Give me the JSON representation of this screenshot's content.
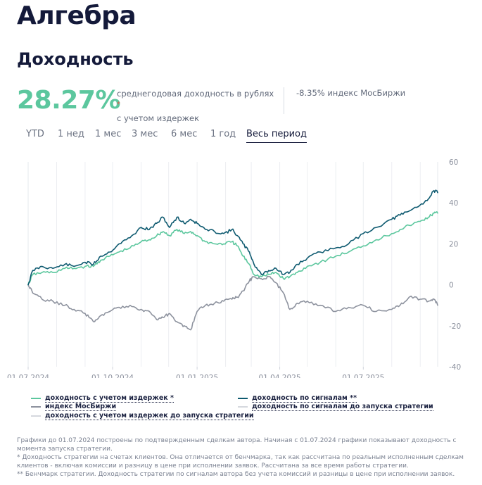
{
  "header": {
    "title": "Алгебра",
    "subtitle": "Доходность"
  },
  "summary": {
    "big_return": "28.27%",
    "desc_line1": "среднегодовая доходность в рублях",
    "desc_star": "*",
    "desc_line2": "с учетом издержек",
    "benchmark": "-8.35% индекс МосБиржи"
  },
  "tabs": [
    {
      "label": "YTD",
      "active": false
    },
    {
      "label": "1 нед",
      "active": false
    },
    {
      "label": "1 мес",
      "active": false
    },
    {
      "label": "3 мес",
      "active": false
    },
    {
      "label": "6 мес",
      "active": false
    },
    {
      "label": "1 год",
      "active": false
    },
    {
      "label": "Весь период",
      "active": true
    }
  ],
  "legend": {
    "net": "доходность с учетом издержек *",
    "signals": "доходность по сигналам **",
    "index": "индекс МосБиржи",
    "signals_pre": "доходность по сигналам до запуска стратегии",
    "net_pre": "доходность с учетом издержек до запуска стратегии"
  },
  "notes": {
    "n1": "Графики до 01.07.2024 построены по подтвержденным сделкам автора. Начиная с 01.07.2024 графики показывают доходность с момента запуска стратегии.",
    "n2": "* Доходность стратегии на счетах клиентов. Она отличается от бенчмарка, так как рассчитана по реальным исполненным сделкам клиентов - включая комиссии и разницу в цене при исполнении заявок. Рассчитана за все время работы стратегии.",
    "n3": "** Бенчмарк стратегии. Доходность стратегии по сигналам автора без учета комиссий и разницы в цене при исполнении заявок."
  },
  "colors": {
    "net": "#5cc79e",
    "signals": "#0e5a70",
    "index": "#8d929e",
    "pre": "#d5d8de"
  },
  "chart_data": {
    "type": "line",
    "x_range": [
      "2024-07-01",
      "2025-09-20"
    ],
    "x_ticks": [
      "01.07.2024",
      "01.10.2024",
      "01.01.2025",
      "01.04.2025",
      "01.07.2025"
    ],
    "y_range": [
      -40,
      60
    ],
    "y_ticks": [
      "60",
      "40",
      "20",
      "0",
      "-20",
      "-40"
    ],
    "grid": "vertical",
    "legend_placement": "bottom",
    "series": [
      {
        "name": "доходность по сигналам **",
        "color": "#0e5a70",
        "points": [
          [
            "2024-07-01",
            0
          ],
          [
            "2024-07-06",
            7
          ],
          [
            "2024-07-16",
            9
          ],
          [
            "2024-07-28",
            8
          ],
          [
            "2024-08-10",
            10
          ],
          [
            "2024-08-20",
            9
          ],
          [
            "2024-09-01",
            11
          ],
          [
            "2024-09-10",
            10
          ],
          [
            "2024-09-18",
            14
          ],
          [
            "2024-09-28",
            16
          ],
          [
            "2024-10-08",
            20
          ],
          [
            "2024-10-20",
            23
          ],
          [
            "2024-11-01",
            28
          ],
          [
            "2024-11-10",
            27
          ],
          [
            "2024-11-18",
            30
          ],
          [
            "2024-11-25",
            33
          ],
          [
            "2024-12-02",
            28
          ],
          [
            "2024-12-10",
            33
          ],
          [
            "2024-12-18",
            30
          ],
          [
            "2024-12-25",
            32
          ],
          [
            "2025-01-01",
            30
          ],
          [
            "2025-01-10",
            27
          ],
          [
            "2025-01-20",
            26
          ],
          [
            "2025-01-30",
            25
          ],
          [
            "2025-02-08",
            27
          ],
          [
            "2025-02-14",
            24
          ],
          [
            "2025-02-20",
            20
          ],
          [
            "2025-02-27",
            16
          ],
          [
            "2025-03-04",
            10
          ],
          [
            "2025-03-12",
            5
          ],
          [
            "2025-03-20",
            7
          ],
          [
            "2025-03-28",
            8
          ],
          [
            "2025-04-05",
            5
          ],
          [
            "2025-04-12",
            6
          ],
          [
            "2025-04-20",
            10
          ],
          [
            "2025-05-01",
            13
          ],
          [
            "2025-05-15",
            16
          ],
          [
            "2025-06-01",
            18
          ],
          [
            "2025-06-15",
            20
          ],
          [
            "2025-07-01",
            25
          ],
          [
            "2025-07-15",
            28
          ],
          [
            "2025-08-01",
            32
          ],
          [
            "2025-08-10",
            34
          ],
          [
            "2025-08-20",
            36
          ],
          [
            "2025-09-01",
            39
          ],
          [
            "2025-09-10",
            42
          ],
          [
            "2025-09-16",
            46
          ],
          [
            "2025-09-20",
            45
          ]
        ]
      },
      {
        "name": "доходность с учетом издержек *",
        "color": "#5cc79e",
        "points": [
          [
            "2024-07-01",
            0
          ],
          [
            "2024-07-06",
            5
          ],
          [
            "2024-07-16",
            6
          ],
          [
            "2024-07-28",
            6
          ],
          [
            "2024-08-10",
            8
          ],
          [
            "2024-08-20",
            8
          ],
          [
            "2024-09-01",
            9
          ],
          [
            "2024-09-10",
            9
          ],
          [
            "2024-09-18",
            12
          ],
          [
            "2024-09-28",
            14
          ],
          [
            "2024-10-08",
            16
          ],
          [
            "2024-10-20",
            18
          ],
          [
            "2024-11-01",
            21
          ],
          [
            "2024-11-10",
            22
          ],
          [
            "2024-11-18",
            24
          ],
          [
            "2024-11-25",
            26
          ],
          [
            "2024-12-02",
            24
          ],
          [
            "2024-12-10",
            27
          ],
          [
            "2024-12-18",
            25
          ],
          [
            "2024-12-25",
            26
          ],
          [
            "2025-01-01",
            24
          ],
          [
            "2025-01-10",
            21
          ],
          [
            "2025-01-20",
            20
          ],
          [
            "2025-01-30",
            20
          ],
          [
            "2025-02-08",
            21
          ],
          [
            "2025-02-14",
            19
          ],
          [
            "2025-02-20",
            14
          ],
          [
            "2025-02-27",
            10
          ],
          [
            "2025-03-04",
            5
          ],
          [
            "2025-03-12",
            4
          ],
          [
            "2025-03-20",
            5
          ],
          [
            "2025-03-28",
            6
          ],
          [
            "2025-04-05",
            3
          ],
          [
            "2025-04-12",
            4
          ],
          [
            "2025-04-20",
            6
          ],
          [
            "2025-05-01",
            9
          ],
          [
            "2025-05-15",
            11
          ],
          [
            "2025-06-01",
            14
          ],
          [
            "2025-06-15",
            16
          ],
          [
            "2025-07-01",
            19
          ],
          [
            "2025-07-15",
            22
          ],
          [
            "2025-08-01",
            25
          ],
          [
            "2025-08-10",
            27
          ],
          [
            "2025-08-20",
            29
          ],
          [
            "2025-09-01",
            31
          ],
          [
            "2025-09-10",
            33
          ],
          [
            "2025-09-16",
            35
          ],
          [
            "2025-09-20",
            35
          ]
        ]
      },
      {
        "name": "индекс МосБиржи",
        "color": "#8d929e",
        "points": [
          [
            "2024-07-01",
            0
          ],
          [
            "2024-07-06",
            -4
          ],
          [
            "2024-07-16",
            -7
          ],
          [
            "2024-07-28",
            -8
          ],
          [
            "2024-08-10",
            -10
          ],
          [
            "2024-08-20",
            -12
          ],
          [
            "2024-09-01",
            -14
          ],
          [
            "2024-09-10",
            -18
          ],
          [
            "2024-09-18",
            -15
          ],
          [
            "2024-09-28",
            -13
          ],
          [
            "2024-10-08",
            -11
          ],
          [
            "2024-10-20",
            -10
          ],
          [
            "2024-11-01",
            -12
          ],
          [
            "2024-11-10",
            -13
          ],
          [
            "2024-11-18",
            -17
          ],
          [
            "2024-11-25",
            -16
          ],
          [
            "2024-12-02",
            -14
          ],
          [
            "2024-12-10",
            -18
          ],
          [
            "2024-12-18",
            -20
          ],
          [
            "2024-12-25",
            -22
          ],
          [
            "2025-01-01",
            -13
          ],
          [
            "2025-01-10",
            -10
          ],
          [
            "2025-01-20",
            -9
          ],
          [
            "2025-01-30",
            -8
          ],
          [
            "2025-02-08",
            -7
          ],
          [
            "2025-02-14",
            -6
          ],
          [
            "2025-02-20",
            -3
          ],
          [
            "2025-02-27",
            2
          ],
          [
            "2025-03-04",
            4
          ],
          [
            "2025-03-12",
            3
          ],
          [
            "2025-03-20",
            4
          ],
          [
            "2025-03-28",
            1
          ],
          [
            "2025-04-05",
            -4
          ],
          [
            "2025-04-12",
            -12
          ],
          [
            "2025-04-20",
            -9
          ],
          [
            "2025-05-01",
            -8
          ],
          [
            "2025-05-15",
            -10
          ],
          [
            "2025-06-01",
            -13
          ],
          [
            "2025-06-15",
            -11
          ],
          [
            "2025-07-01",
            -10
          ],
          [
            "2025-07-15",
            -13
          ],
          [
            "2025-08-01",
            -12
          ],
          [
            "2025-08-10",
            -10
          ],
          [
            "2025-08-20",
            -6
          ],
          [
            "2025-09-01",
            -7
          ],
          [
            "2025-09-10",
            -8
          ],
          [
            "2025-09-16",
            -7
          ],
          [
            "2025-09-20",
            -10
          ]
        ]
      }
    ]
  }
}
